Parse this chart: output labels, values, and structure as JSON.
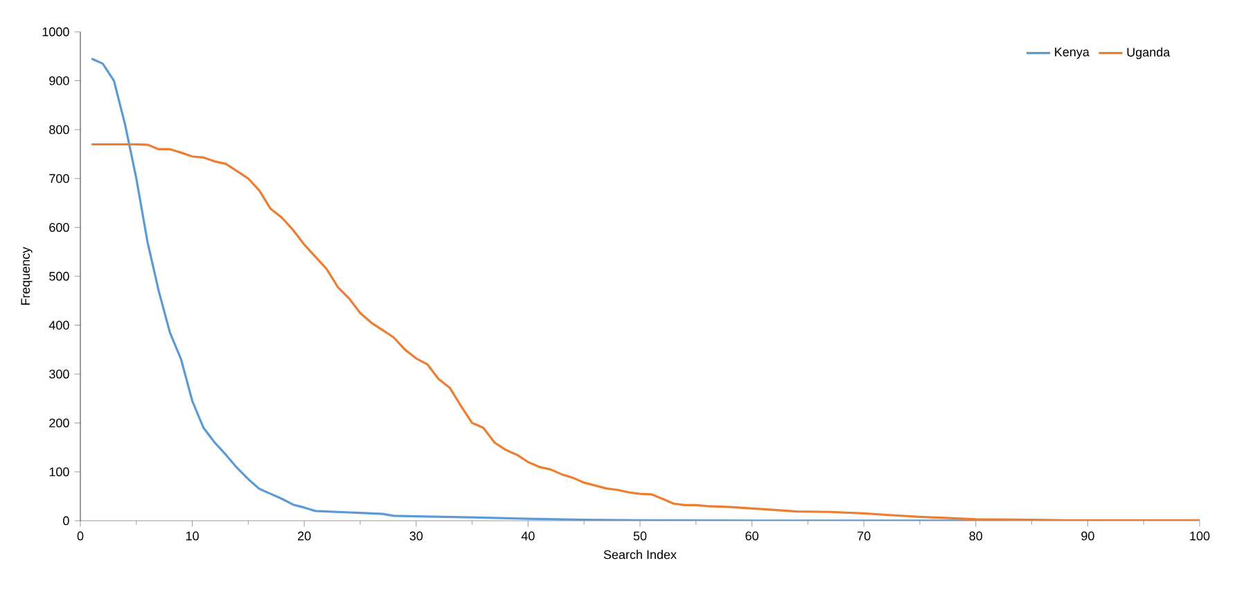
{
  "chart_data": {
    "type": "line",
    "xlabel": "Search Index",
    "ylabel": "Frequency",
    "xlim": [
      0,
      100
    ],
    "ylim": [
      0,
      1000
    ],
    "xticks": [
      0,
      10,
      20,
      30,
      40,
      50,
      60,
      70,
      80,
      90,
      100
    ],
    "yticks": [
      0,
      100,
      200,
      300,
      400,
      500,
      600,
      700,
      800,
      900,
      1000
    ],
    "legend": "top right",
    "grid": false,
    "marker": "none",
    "line_style": "solid",
    "series": [
      {
        "name": "Kenya",
        "color": "#5b9bd5",
        "x": [
          1,
          2,
          3,
          4,
          5,
          6,
          7,
          8,
          9,
          10,
          11,
          12,
          13,
          14,
          15,
          16,
          17,
          18,
          19,
          20,
          21,
          22,
          25,
          27,
          28,
          30,
          35,
          40,
          45,
          50,
          60,
          70,
          80,
          90,
          100
        ],
        "values": [
          945,
          935,
          900,
          810,
          700,
          570,
          470,
          385,
          330,
          245,
          190,
          160,
          135,
          108,
          85,
          65,
          55,
          45,
          33,
          27,
          20,
          19,
          16,
          14,
          10,
          9,
          7,
          4,
          2,
          1,
          0,
          0,
          0,
          0,
          0
        ]
      },
      {
        "name": "Uganda",
        "color": "#ed7d31",
        "x": [
          1,
          5,
          6,
          7,
          8,
          9,
          10,
          11,
          12,
          13,
          14,
          15,
          16,
          17,
          18,
          19,
          20,
          21,
          22,
          23,
          24,
          25,
          26,
          27,
          28,
          29,
          30,
          31,
          32,
          33,
          34,
          35,
          36,
          37,
          38,
          39,
          40,
          41,
          42,
          43,
          44,
          45,
          46,
          47,
          48,
          49,
          50,
          51,
          52,
          53,
          54,
          55,
          56,
          58,
          60,
          62,
          64,
          67,
          70,
          72,
          75,
          78,
          80,
          85,
          88,
          100
        ],
        "values": [
          770,
          770,
          769,
          760,
          760,
          753,
          745,
          743,
          735,
          730,
          715,
          700,
          675,
          638,
          620,
          595,
          565,
          540,
          515,
          478,
          455,
          425,
          405,
          390,
          375,
          350,
          332,
          320,
          290,
          272,
          235,
          200,
          190,
          160,
          145,
          135,
          120,
          110,
          105,
          95,
          88,
          78,
          72,
          66,
          63,
          58,
          55,
          54,
          45,
          35,
          32,
          32,
          30,
          28,
          25,
          22,
          19,
          18,
          15,
          12,
          8,
          5,
          3,
          2,
          1,
          1
        ]
      }
    ]
  }
}
